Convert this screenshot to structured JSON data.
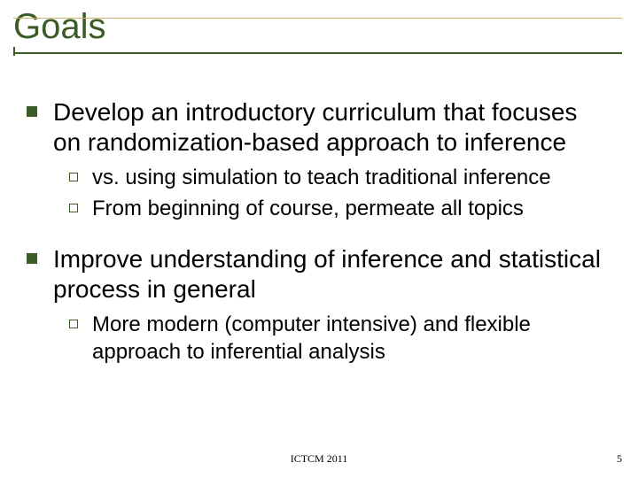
{
  "title": "Goals",
  "colors": {
    "title_color": "#3b5b27",
    "rule_main": "#3b5b27",
    "rule_accent": "#c9b26a",
    "bullet_l1_fill": "#3b5b27",
    "bullet_l2_border": "#3b5b27",
    "body_text": "#000000",
    "background": "#ffffff"
  },
  "typography": {
    "title_fontsize": 40,
    "l1_fontsize": 28,
    "l2_fontsize": 24,
    "footer_fontsize": 12,
    "title_family": "Arial",
    "footer_family": "Times New Roman"
  },
  "bullets": [
    {
      "text": "Develop an introductory curriculum that focuses on randomization-based approach to inference",
      "sub": [
        {
          "text": "vs. using simulation to teach traditional inference"
        },
        {
          "text": "From beginning of course, permeate all topics"
        }
      ]
    },
    {
      "text": "Improve understanding of inference and statistical process in general",
      "sub": [
        {
          "text": "More modern (computer intensive) and flexible approach to inferential analysis"
        }
      ]
    }
  ],
  "footer": {
    "center": "ICTCM 2011",
    "page_number": "5"
  }
}
